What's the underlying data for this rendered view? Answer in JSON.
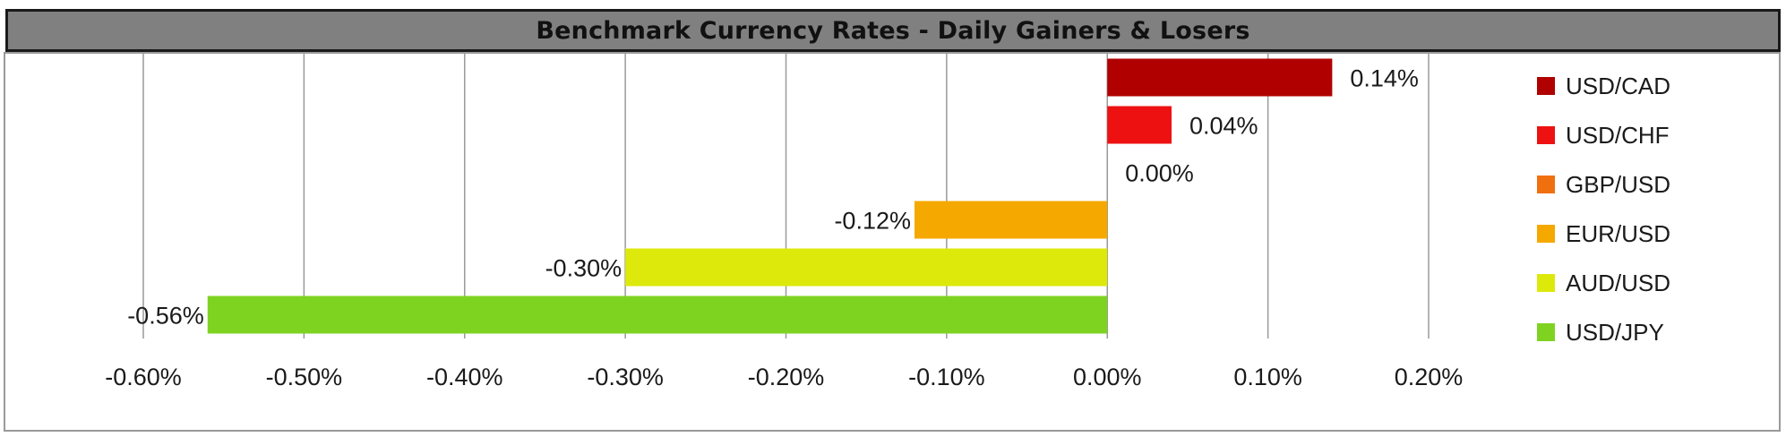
{
  "chart_data": {
    "type": "bar",
    "orientation": "horizontal",
    "title": "Benchmark Currency Rates - Daily Gainers & Losers",
    "categories": [
      "USD/CAD",
      "USD/CHF",
      "GBP/USD",
      "EUR/USD",
      "AUD/USD",
      "USD/JPY"
    ],
    "values": [
      0.14,
      0.04,
      0.0,
      -0.12,
      -0.3,
      -0.56
    ],
    "value_labels": [
      "0.14%",
      "0.04%",
      "0.00%",
      "-0.12%",
      "-0.30%",
      "-0.56%"
    ],
    "colors": [
      "#b00000",
      "#ee1111",
      "#f07010",
      "#f5a800",
      "#dce90a",
      "#7ed321"
    ],
    "xlim": [
      -0.6,
      0.2
    ],
    "xticks": [
      -0.6,
      -0.5,
      -0.4,
      -0.3,
      -0.2,
      -0.1,
      0.0,
      0.1,
      0.2
    ],
    "xtick_labels": [
      "-0.60%",
      "-0.50%",
      "-0.40%",
      "-0.30%",
      "-0.20%",
      "-0.10%",
      "0.00%",
      "0.10%",
      "0.20%"
    ],
    "grid": true,
    "legend": "right"
  }
}
